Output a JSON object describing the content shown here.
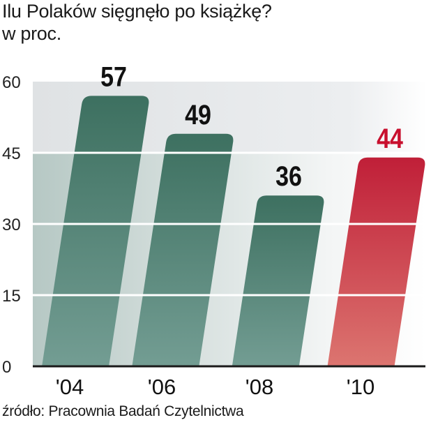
{
  "title": "Ilu Polaków sięgnęło po książkę?",
  "subtitle": "w proc.",
  "source": "źródło: Pracownia Badań Czytelnictwa",
  "chart_data": {
    "type": "bar",
    "title": "Ilu Polaków sięgnęło po książkę?",
    "ylabel": "w proc.",
    "categories": [
      "'04",
      "'06",
      "'08",
      "'10"
    ],
    "values": [
      57,
      49,
      36,
      44
    ],
    "data_labels": [
      "57",
      "49",
      "36",
      "44"
    ],
    "ylim": [
      0,
      60
    ],
    "yticks": [
      0,
      15,
      30,
      45,
      60
    ],
    "ytick_labels": [
      "0",
      "15",
      "30",
      "45",
      "60"
    ],
    "grid": true,
    "colors": {
      "default_top": "#3d7060",
      "default_bottom": "#739d93",
      "highlight_top": "#c01f38",
      "highlight_bottom": "#dc7570",
      "highlight_label": "#c8102e"
    },
    "highlight_index": 3
  }
}
